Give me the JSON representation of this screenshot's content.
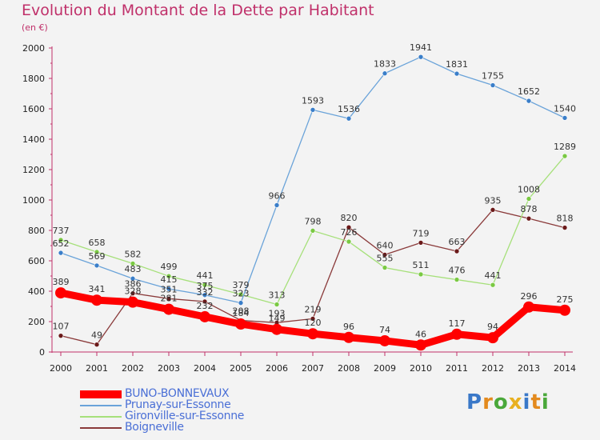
{
  "header": {
    "title": "Evolution du Montant de la Dette par Habitant",
    "subtitle": "(en €)"
  },
  "brand": {
    "text": "Proxiti"
  },
  "chart_data": {
    "type": "line",
    "title": "Evolution du Montant de la Dette par Habitant",
    "ylabel": "(en €)",
    "xlabel": "",
    "x": [
      "2000",
      "2001",
      "2002",
      "2003",
      "2004",
      "2005",
      "2006",
      "2007",
      "2008",
      "2009",
      "2010",
      "2011",
      "2012",
      "2013",
      "2014"
    ],
    "ylim": [
      0,
      2000
    ],
    "yticks": [
      0,
      200,
      400,
      600,
      800,
      1000,
      1200,
      1400,
      1600,
      1800,
      2000
    ],
    "grid": false,
    "legend_position": "bottom-left",
    "series": [
      {
        "name": "BUNO-BONNEVAUX",
        "color": "#ff0000",
        "marker_color": "#ff0000",
        "values": [
          389,
          341,
          328,
          281,
          232,
          184,
          149,
          120,
          96,
          74,
          46,
          117,
          94,
          296,
          275
        ]
      },
      {
        "name": "Prunay-sur-Essonne",
        "color": "#6aa3d9",
        "marker_color": "#3a7ec9",
        "values": [
          652,
          569,
          483,
          415,
          375,
          323,
          966,
          1593,
          1536,
          1833,
          1941,
          1831,
          1755,
          1652,
          1540
        ]
      },
      {
        "name": "Gironville-sur-Essonne",
        "color": "#a6e07a",
        "marker_color": "#7ac943",
        "values": [
          737,
          658,
          582,
          499,
          441,
          379,
          313,
          798,
          726,
          555,
          511,
          476,
          441,
          1008,
          1289
        ]
      },
      {
        "name": "Boigneville",
        "color": "#8a3a3a",
        "marker_color": "#6b1a1a",
        "values": [
          107,
          49,
          386,
          351,
          332,
          208,
          193,
          219,
          820,
          640,
          719,
          663,
          935,
          878,
          818
        ]
      }
    ]
  }
}
